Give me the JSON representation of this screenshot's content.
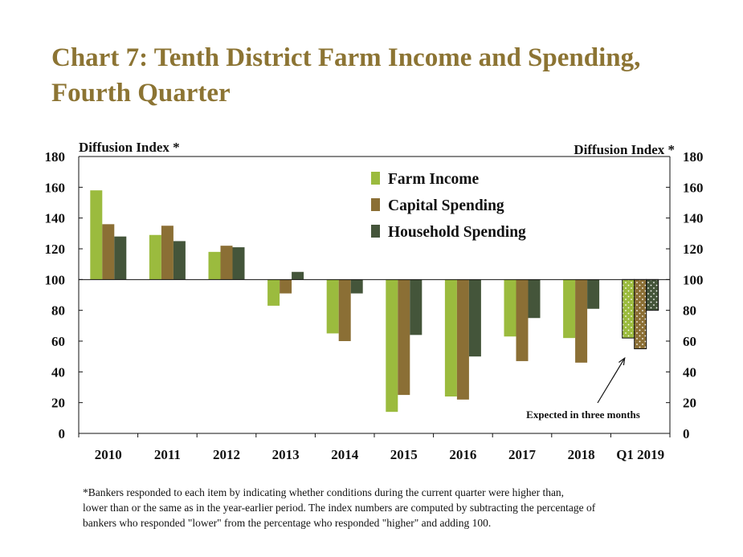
{
  "title_lines": [
    "Chart 7: Tenth District Farm Income and Spending,",
    "Fourth Quarter"
  ],
  "chart_data": {
    "type": "bar",
    "categories": [
      "2010",
      "2011",
      "2012",
      "2013",
      "2014",
      "2015",
      "2016",
      "2017",
      "2018",
      "Q1 2019"
    ],
    "baseline": 100,
    "ylim": [
      0,
      180
    ],
    "yticks": [
      0,
      20,
      40,
      60,
      80,
      100,
      120,
      140,
      160,
      180
    ],
    "ylabel_left": "Diffusion Index *",
    "ylabel_right": "Diffusion Index *",
    "legend_position": "top-right",
    "grid": false,
    "series": [
      {
        "name": "Farm Income",
        "color": "#9bbb3e",
        "values": [
          158,
          129,
          118,
          83,
          65,
          14,
          24,
          63,
          62,
          62
        ]
      },
      {
        "name": "Capital Spending",
        "color": "#8b6f35",
        "values": [
          136,
          135,
          122,
          91,
          60,
          25,
          22,
          47,
          46,
          55
        ]
      },
      {
        "name": "Household Spending",
        "color": "#44553a",
        "values": [
          128,
          125,
          121,
          105,
          91,
          64,
          50,
          75,
          81,
          80
        ]
      }
    ],
    "expected_category": "Q1 2019",
    "annotation": "Expected in three months"
  },
  "footnote_lines": [
    "*Bankers responded to each item by indicating whether conditions during the current quarter were higher than,",
    "lower than or the same as in the year-earlier period.  The index numbers are computed by subtracting the percentage of",
    "bankers who responded \"lower\" from the percentage who responded \"higher\" and adding 100."
  ]
}
